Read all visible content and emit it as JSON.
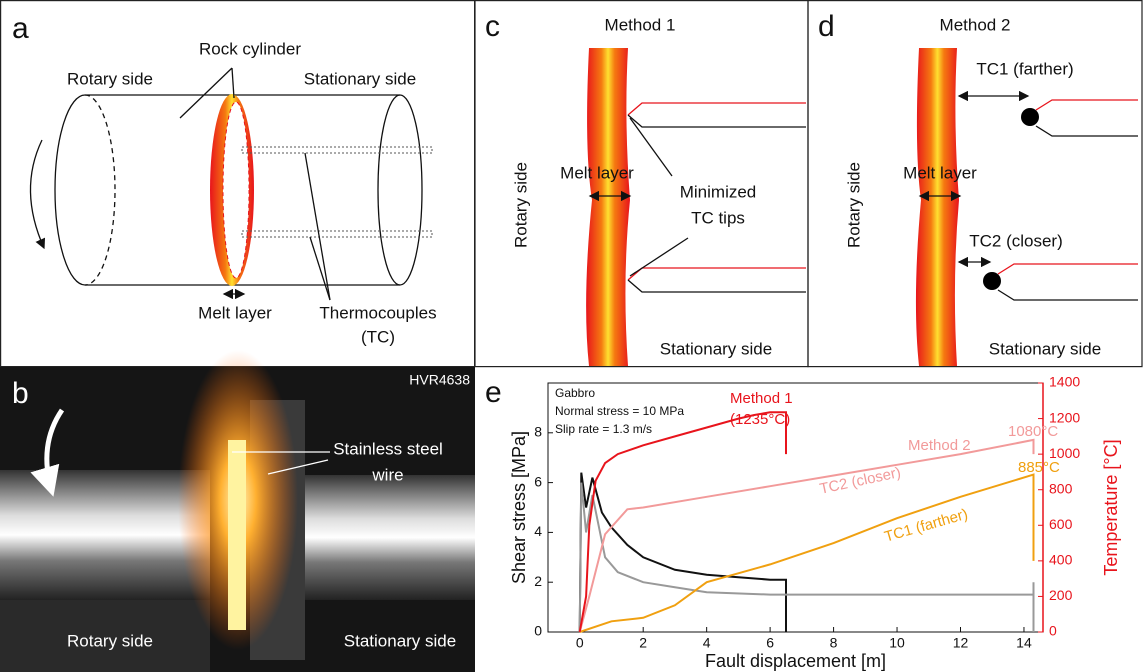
{
  "panels": {
    "a": {
      "letter": "a",
      "rock_cylinder": "Rock cylinder",
      "rotary_side": "Rotary side",
      "stationary_side": "Stationary side",
      "melt_layer": "Melt layer",
      "thermocouples": [
        "Thermocouples",
        "(TC)"
      ]
    },
    "b": {
      "letter": "b",
      "id": "HVR4638",
      "wire": [
        "Stainless steel",
        "wire"
      ],
      "rotary_side": "Rotary side",
      "stationary_side": "Stationary side"
    },
    "c": {
      "letter": "c",
      "title": "Method 1",
      "rotary_side": "Rotary side",
      "melt_layer": "Melt layer",
      "tc_tips": [
        "Minimized",
        "TC tips"
      ],
      "stationary_side": "Stationary side"
    },
    "d": {
      "letter": "d",
      "title": "Method 2",
      "tc1": "TC1 (farther)",
      "rotary_side": "Rotary side",
      "melt_layer": "Melt layer",
      "tc2": "TC2 (closer)",
      "stationary_side": "Stationary side"
    }
  },
  "chart_data": {
    "type": "line",
    "panel_letter": "e",
    "xlabel": "Fault displacement [m]",
    "ylabel": "Shear stress [MPa]",
    "y2label": "Temperature [°C]",
    "info": [
      "Gabbro",
      "Normal stress = 10 MPa",
      "Slip rate = 1.3 m/s"
    ],
    "annotations": [
      "(1235°C)",
      "Method 2",
      "1080°C",
      "885°C"
    ],
    "xlim": [
      -1,
      14.6
    ],
    "xticks": [
      0,
      2,
      4,
      6,
      8,
      10,
      12,
      14
    ],
    "ylim": [
      0,
      10
    ],
    "yticks": [
      0,
      2,
      4,
      6,
      8
    ],
    "y2lim": [
      0,
      1400
    ],
    "y2ticks": [
      0,
      200,
      400,
      600,
      800,
      1000,
      1200,
      1400
    ],
    "series": [
      {
        "name": "Method 1",
        "color": "#e8141c",
        "axis": "y2",
        "x": [
          0,
          0.2,
          0.3,
          0.5,
          0.8,
          1.2,
          2,
          3,
          4,
          5,
          5.5,
          6,
          6.5,
          6.5
        ],
        "values": [
          0,
          200,
          600,
          850,
          950,
          1000,
          1050,
          1100,
          1150,
          1200,
          1220,
          1235,
          1235,
          1000
        ]
      },
      {
        "name": "TC2 (closer)",
        "color": "#f29a9a",
        "axis": "y2",
        "x": [
          0,
          0.3,
          0.8,
          1.5,
          2,
          4,
          6,
          8,
          10,
          12,
          14.3,
          14.3
        ],
        "values": [
          0,
          200,
          550,
          690,
          700,
          760,
          820,
          880,
          940,
          1000,
          1080,
          1000
        ]
      },
      {
        "name": "TC1 (farther)",
        "color": "#f0a010",
        "axis": "y2",
        "x": [
          0,
          1,
          2,
          3,
          4,
          6,
          8,
          10,
          12,
          14.3,
          14.3
        ],
        "values": [
          0,
          60,
          80,
          150,
          280,
          380,
          500,
          640,
          760,
          885,
          400
        ]
      },
      {
        "color": "#111111",
        "x": [
          0,
          0.05,
          0.2,
          0.4,
          0.7,
          1,
          1.5,
          2,
          3,
          4,
          5,
          6,
          6.5,
          6.5
        ],
        "values": [
          0,
          6.4,
          5,
          6.2,
          4.8,
          4.2,
          3.5,
          3,
          2.5,
          2.3,
          2.2,
          2.1,
          2.1,
          0
        ]
      },
      {
        "color": "#999999",
        "x": [
          0,
          0.05,
          0.2,
          0.4,
          0.8,
          1.2,
          2,
          3,
          4,
          6,
          8,
          10,
          12,
          14,
          14.3,
          14.3,
          14.3
        ],
        "values": [
          0,
          6,
          4,
          5.5,
          3,
          2.4,
          2,
          1.8,
          1.6,
          1.5,
          1.5,
          1.5,
          1.5,
          1.5,
          1.5,
          2,
          0
        ]
      }
    ]
  }
}
